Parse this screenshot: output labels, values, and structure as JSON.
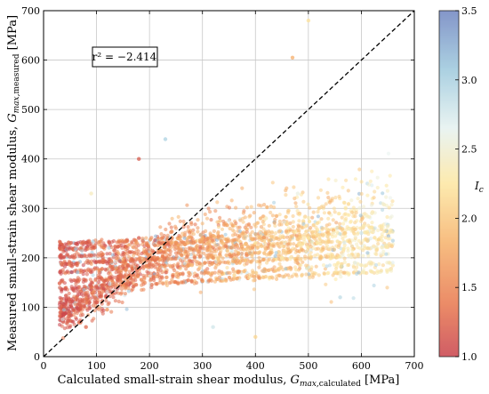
{
  "chart_data": {
    "type": "scatter",
    "xlabel_main": "Calculated small-strain shear modulus, ",
    "xlabel_symbol": "G",
    "xlabel_sub": "max,",
    "xlabel_sub2": "calculated",
    "xlabel_unit": " [MPa]",
    "ylabel_main": "Measured small-strain shear modulus, ",
    "ylabel_symbol": "G",
    "ylabel_sub": "max,",
    "ylabel_sub2": "measured",
    "ylabel_unit": " [MPa]",
    "xlim": [
      0,
      700
    ],
    "ylim": [
      0,
      700
    ],
    "xticks": [
      "0",
      "100",
      "200",
      "300",
      "400",
      "500",
      "600",
      "700"
    ],
    "yticks": [
      "0",
      "100",
      "200",
      "300",
      "400",
      "500",
      "600",
      "700"
    ],
    "grid": true,
    "reference_line": {
      "style": "dashed",
      "from": [
        0,
        0
      ],
      "to": [
        700,
        700
      ]
    },
    "annotation_text": "r² = −2.414",
    "colorbar": {
      "label": "I",
      "label_sub": "c",
      "range": [
        1.0,
        3.5
      ],
      "ticks": [
        "1.0",
        "1.5",
        "2.0",
        "2.5",
        "3.0",
        "3.5"
      ],
      "colors": [
        "#c8414b",
        "#e8774d",
        "#f6b26b",
        "#fde7a1",
        "#e6f2f0",
        "#9dc9dd",
        "#6f84c0"
      ]
    },
    "points_summary": {
      "count_estimate": 3000,
      "dense_bands_y": [
        150,
        165,
        185,
        200,
        215,
        230,
        240
      ],
      "x_range": [
        30,
        660
      ],
      "y_range": [
        20,
        680
      ]
    },
    "sample_points": [
      {
        "x": 80,
        "y": 60,
        "c": 1.3
      },
      {
        "x": 100,
        "y": 110,
        "c": 1.2
      },
      {
        "x": 120,
        "y": 95,
        "c": 1.6
      },
      {
        "x": 150,
        "y": 150,
        "c": 1.4
      },
      {
        "x": 160,
        "y": 185,
        "c": 1.3
      },
      {
        "x": 180,
        "y": 240,
        "c": 1.2
      },
      {
        "x": 200,
        "y": 200,
        "c": 1.5
      },
      {
        "x": 220,
        "y": 215,
        "c": 1.7
      },
      {
        "x": 250,
        "y": 230,
        "c": 1.6
      },
      {
        "x": 280,
        "y": 185,
        "c": 1.9
      },
      {
        "x": 300,
        "y": 240,
        "c": 1.8
      },
      {
        "x": 330,
        "y": 200,
        "c": 2.0
      },
      {
        "x": 360,
        "y": 165,
        "c": 2.1
      },
      {
        "x": 400,
        "y": 230,
        "c": 2.2
      },
      {
        "x": 420,
        "y": 280,
        "c": 2.4
      },
      {
        "x": 450,
        "y": 200,
        "c": 2.3
      },
      {
        "x": 480,
        "y": 330,
        "c": 2.6
      },
      {
        "x": 500,
        "y": 240,
        "c": 2.2
      },
      {
        "x": 520,
        "y": 300,
        "c": 2.1
      },
      {
        "x": 560,
        "y": 260,
        "c": 2.0
      },
      {
        "x": 600,
        "y": 250,
        "c": 2.8
      },
      {
        "x": 620,
        "y": 290,
        "c": 2.4
      },
      {
        "x": 180,
        "y": 400,
        "c": 1.2
      },
      {
        "x": 230,
        "y": 440,
        "c": 3.0
      },
      {
        "x": 470,
        "y": 605,
        "c": 1.8
      },
      {
        "x": 500,
        "y": 680,
        "c": 2.2
      },
      {
        "x": 90,
        "y": 330,
        "c": 2.4
      },
      {
        "x": 320,
        "y": 60,
        "c": 2.8
      },
      {
        "x": 400,
        "y": 40,
        "c": 2.1
      },
      {
        "x": 560,
        "y": 120,
        "c": 2.9
      }
    ]
  }
}
